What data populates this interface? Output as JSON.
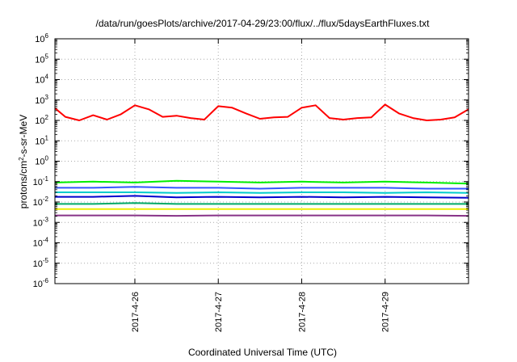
{
  "chart_data": {
    "type": "line",
    "title": "/data/run/goesPlots/archive/2017-04-29/23:00/flux/../flux/5daysEarthFluxes.txt",
    "xlabel": "Coordinated Universal Time (UTC)",
    "ylabel": {
      "prefix": "protons/cm",
      "sup": "2",
      "suffix": "-s-sr-MeV"
    },
    "y_scale": "log",
    "ylim_exp": [
      -6,
      6
    ],
    "y_ticks": [
      {
        "base": "10",
        "exp": "-6"
      },
      {
        "base": "10",
        "exp": "-5"
      },
      {
        "base": "10",
        "exp": "-4"
      },
      {
        "base": "10",
        "exp": "-3"
      },
      {
        "base": "10",
        "exp": "-2"
      },
      {
        "base": "10",
        "exp": "-1"
      },
      {
        "base": "10",
        "exp": "0"
      },
      {
        "base": "10",
        "exp": "1"
      },
      {
        "base": "10",
        "exp": "2"
      },
      {
        "base": "10",
        "exp": "3"
      },
      {
        "base": "10",
        "exp": "4"
      },
      {
        "base": "10",
        "exp": "5"
      },
      {
        "base": "10",
        "exp": "6"
      }
    ],
    "x_range_days": [
      "2017-04-25 01:00",
      "2017-04-30 00:00"
    ],
    "x_ticks": [
      "2017-4-26",
      "2017-4-27",
      "2017-4-28",
      "2017-4-29"
    ],
    "grid": true,
    "legend": "none",
    "series": [
      {
        "color": "#ff0000",
        "x": [
          "2017-04-25 01:00",
          "2017-04-25 04:00",
          "2017-04-25 08:00",
          "2017-04-25 12:00",
          "2017-04-25 16:00",
          "2017-04-25 20:00",
          "2017-04-26 00:00",
          "2017-04-26 04:00",
          "2017-04-26 08:00",
          "2017-04-26 12:00",
          "2017-04-26 16:00",
          "2017-04-26 20:00",
          "2017-04-27 00:00",
          "2017-04-27 04:00",
          "2017-04-27 08:00",
          "2017-04-27 12:00",
          "2017-04-27 16:00",
          "2017-04-27 20:00",
          "2017-04-28 00:00",
          "2017-04-28 04:00",
          "2017-04-28 08:00",
          "2017-04-28 12:00",
          "2017-04-28 16:00",
          "2017-04-28 20:00",
          "2017-04-29 00:00",
          "2017-04-29 04:00",
          "2017-04-29 08:00",
          "2017-04-29 12:00",
          "2017-04-29 16:00",
          "2017-04-29 20:00",
          "2017-04-30 00:00"
        ],
        "values": [
          400,
          150,
          100,
          180,
          110,
          200,
          550,
          350,
          150,
          170,
          130,
          110,
          500,
          420,
          220,
          120,
          140,
          150,
          420,
          550,
          130,
          110,
          130,
          140,
          600,
          220,
          130,
          100,
          110,
          140,
          350
        ]
      },
      {
        "color": "#00ee00",
        "x": [
          "2017-04-25 01:00",
          "2017-04-25 12:00",
          "2017-04-26 00:00",
          "2017-04-26 12:00",
          "2017-04-27 00:00",
          "2017-04-27 12:00",
          "2017-04-28 00:00",
          "2017-04-28 12:00",
          "2017-04-29 00:00",
          "2017-04-29 12:00",
          "2017-04-30 00:00"
        ],
        "values": [
          0.09,
          0.1,
          0.09,
          0.11,
          0.1,
          0.09,
          0.1,
          0.09,
          0.1,
          0.09,
          0.08
        ]
      },
      {
        "color": "#3355ff",
        "x": [
          "2017-04-25 01:00",
          "2017-04-25 12:00",
          "2017-04-26 00:00",
          "2017-04-26 12:00",
          "2017-04-27 00:00",
          "2017-04-27 12:00",
          "2017-04-28 00:00",
          "2017-04-28 12:00",
          "2017-04-29 00:00",
          "2017-04-29 12:00",
          "2017-04-30 00:00"
        ],
        "values": [
          0.05,
          0.05,
          0.055,
          0.05,
          0.05,
          0.045,
          0.05,
          0.05,
          0.05,
          0.045,
          0.045
        ]
      },
      {
        "color": "#00cccc",
        "x": [
          "2017-04-25 01:00",
          "2017-04-25 12:00",
          "2017-04-26 00:00",
          "2017-04-26 12:00",
          "2017-04-27 00:00",
          "2017-04-27 12:00",
          "2017-04-28 00:00",
          "2017-04-28 12:00",
          "2017-04-29 00:00",
          "2017-04-29 12:00",
          "2017-04-30 00:00"
        ],
        "values": [
          0.03,
          0.03,
          0.03,
          0.028,
          0.03,
          0.028,
          0.03,
          0.03,
          0.028,
          0.03,
          0.028
        ]
      },
      {
        "color": "#0000cc",
        "x": [
          "2017-04-25 01:00",
          "2017-04-25 12:00",
          "2017-04-26 00:00",
          "2017-04-26 12:00",
          "2017-04-27 00:00",
          "2017-04-27 12:00",
          "2017-04-28 00:00",
          "2017-04-28 12:00",
          "2017-04-29 00:00",
          "2017-04-29 12:00",
          "2017-04-30 00:00"
        ],
        "values": [
          0.018,
          0.018,
          0.02,
          0.017,
          0.018,
          0.017,
          0.018,
          0.017,
          0.018,
          0.017,
          0.016
        ]
      },
      {
        "color": "#00aa66",
        "x": [
          "2017-04-25 01:00",
          "2017-04-25 12:00",
          "2017-04-26 00:00",
          "2017-04-26 12:00",
          "2017-04-27 00:00",
          "2017-04-27 12:00",
          "2017-04-28 00:00",
          "2017-04-28 12:00",
          "2017-04-29 00:00",
          "2017-04-29 12:00",
          "2017-04-30 00:00"
        ],
        "values": [
          0.008,
          0.008,
          0.009,
          0.008,
          0.008,
          0.008,
          0.008,
          0.008,
          0.008,
          0.008,
          0.008
        ]
      },
      {
        "color": "#eeee00",
        "x": [
          "2017-04-25 01:00",
          "2017-04-25 12:00",
          "2017-04-26 00:00",
          "2017-04-26 12:00",
          "2017-04-27 00:00",
          "2017-04-27 12:00",
          "2017-04-28 00:00",
          "2017-04-28 12:00",
          "2017-04-29 00:00",
          "2017-04-29 12:00",
          "2017-04-30 00:00"
        ],
        "values": [
          0.0045,
          0.0045,
          0.0045,
          0.0045,
          0.0045,
          0.0045,
          0.0045,
          0.0045,
          0.0045,
          0.0045,
          0.0045
        ]
      },
      {
        "color": "#883388",
        "x": [
          "2017-04-25 01:00",
          "2017-04-25 12:00",
          "2017-04-26 00:00",
          "2017-04-26 12:00",
          "2017-04-27 00:00",
          "2017-04-27 12:00",
          "2017-04-28 00:00",
          "2017-04-28 12:00",
          "2017-04-29 00:00",
          "2017-04-29 12:00",
          "2017-04-30 00:00"
        ],
        "values": [
          0.0022,
          0.0022,
          0.0022,
          0.0021,
          0.0022,
          0.0022,
          0.0022,
          0.0022,
          0.0022,
          0.0022,
          0.0021
        ]
      }
    ]
  }
}
